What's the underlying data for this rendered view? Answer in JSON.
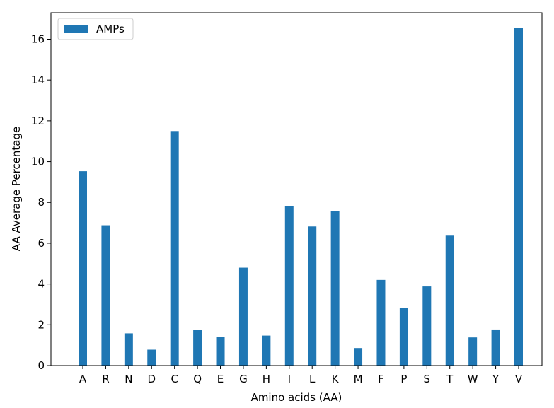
{
  "chart_data": {
    "type": "bar",
    "categories": [
      "A",
      "R",
      "N",
      "D",
      "C",
      "Q",
      "E",
      "G",
      "H",
      "I",
      "L",
      "K",
      "M",
      "F",
      "P",
      "S",
      "T",
      "W",
      "Y",
      "V"
    ],
    "series": [
      {
        "name": "AMPs",
        "color": "#1f77b4",
        "values": [
          9.53,
          6.88,
          1.58,
          0.78,
          11.5,
          1.75,
          1.42,
          4.8,
          1.47,
          7.83,
          6.82,
          7.58,
          0.86,
          4.2,
          2.83,
          3.88,
          6.37,
          1.38,
          1.77,
          16.57
        ]
      }
    ],
    "xlabel": "Amino acids (AA)",
    "ylabel": "AA Average Percentage",
    "ylim": [
      0,
      17.3
    ],
    "yticks": [
      0,
      2,
      4,
      6,
      8,
      10,
      12,
      14,
      16
    ],
    "legend_position": "upper-left",
    "grid": false
  }
}
